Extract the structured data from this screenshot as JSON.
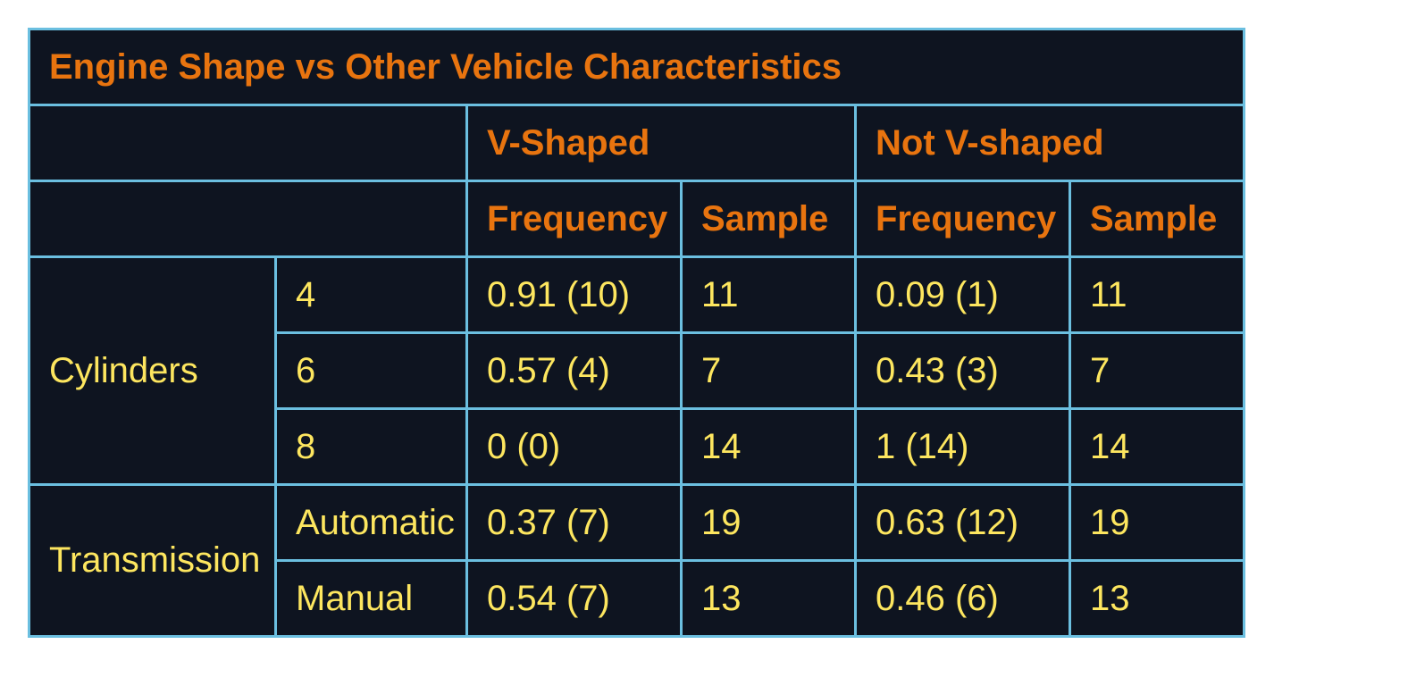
{
  "title": "Engine Shape vs Other Vehicle Characteristics",
  "groups": {
    "v_shaped": "V-Shaped",
    "not_v_shaped": "Not V-shaped"
  },
  "subheaders": {
    "frequency": "Frequency",
    "sample": "Sample"
  },
  "sections": [
    {
      "label": "Cylinders",
      "rows": [
        {
          "category": "4",
          "v_freq": "0.91 (10)",
          "v_sample": "11",
          "nv_freq": "0.09 (1)",
          "nv_sample": "11"
        },
        {
          "category": "6",
          "v_freq": "0.57 (4)",
          "v_sample": "7",
          "nv_freq": "0.43 (3)",
          "nv_sample": "7"
        },
        {
          "category": "8",
          "v_freq": "0 (0)",
          "v_sample": "14",
          "nv_freq": "1 (14)",
          "nv_sample": "14"
        }
      ]
    },
    {
      "label": "Transmission",
      "rows": [
        {
          "category": "Automatic",
          "v_freq": "0.37 (7)",
          "v_sample": "19",
          "nv_freq": "0.63 (12)",
          "nv_sample": "19"
        },
        {
          "category": "Manual",
          "v_freq": "0.54 (7)",
          "v_sample": "13",
          "nv_freq": "0.46 (6)",
          "nv_sample": "13"
        }
      ]
    }
  ],
  "colors": {
    "background": "#0e1420",
    "border": "#6bbfe0",
    "header_text": "#e8740f",
    "body_text": "#fde65f"
  }
}
